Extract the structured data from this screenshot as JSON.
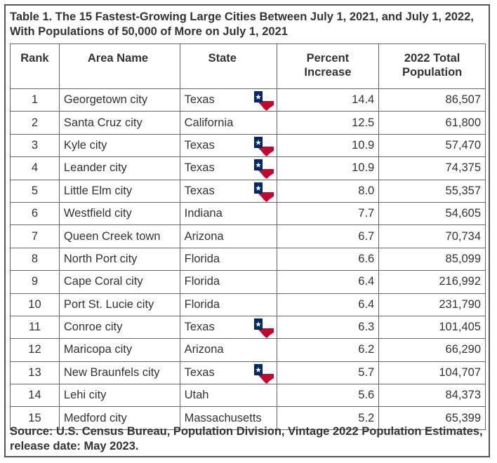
{
  "title": "Table 1. The 15 Fastest-Growing Large Cities Between July 1, 2021, and July 1, 2022, With Populations of 50,000 of More on July 1, 2021",
  "headers": {
    "rank": "Rank",
    "area": "Area Name",
    "state": "State",
    "pct_line1": "Percent",
    "pct_line2": "Increase",
    "pop_line1": "2022 Total",
    "pop_line2": "Population"
  },
  "rows": [
    {
      "rank": "1",
      "area": "Georgetown city",
      "state": "Texas",
      "pct": "14.4",
      "pop": "86,507",
      "flag": "texas-flag-icon"
    },
    {
      "rank": "2",
      "area": "Santa Cruz city",
      "state": "California",
      "pct": "12.5",
      "pop": "61,800",
      "flag": null
    },
    {
      "rank": "3",
      "area": "Kyle city",
      "state": "Texas",
      "pct": "10.9",
      "pop": "57,470",
      "flag": "texas-flag-icon"
    },
    {
      "rank": "4",
      "area": "Leander city",
      "state": "Texas",
      "pct": "10.9",
      "pop": "74,375",
      "flag": "texas-flag-icon"
    },
    {
      "rank": "5",
      "area": "Little Elm city",
      "state": "Texas",
      "pct": "8.0",
      "pop": "55,357",
      "flag": "texas-flag-icon"
    },
    {
      "rank": "6",
      "area": "Westfield city",
      "state": "Indiana",
      "pct": "7.7",
      "pop": "54,605",
      "flag": null
    },
    {
      "rank": "7",
      "area": "Queen Creek town",
      "state": "Arizona",
      "pct": "6.7",
      "pop": "70,734",
      "flag": null
    },
    {
      "rank": "8",
      "area": "North Port city",
      "state": "Florida",
      "pct": "6.6",
      "pop": "85,099",
      "flag": null
    },
    {
      "rank": "9",
      "area": "Cape Coral city",
      "state": "Florida",
      "pct": "6.4",
      "pop": "216,992",
      "flag": null
    },
    {
      "rank": "10",
      "area": "Port St. Lucie city",
      "state": "Florida",
      "pct": "6.4",
      "pop": "231,790",
      "flag": null
    },
    {
      "rank": "11",
      "area": "Conroe city",
      "state": "Texas",
      "pct": "6.3",
      "pop": "101,405",
      "flag": "texas-flag-icon"
    },
    {
      "rank": "12",
      "area": "Maricopa city",
      "state": "Arizona",
      "pct": "6.2",
      "pop": "66,290",
      "flag": null
    },
    {
      "rank": "13",
      "area": "New Braunfels city",
      "state": "Texas",
      "pct": "5.7",
      "pop": "104,707",
      "flag": "texas-flag-icon"
    },
    {
      "rank": "14",
      "area": "Lehi city",
      "state": "Utah",
      "pct": "5.6",
      "pop": "84,373",
      "flag": null
    },
    {
      "rank": "15",
      "area": "Medford city",
      "state": "Massachusetts",
      "pct": "5.2",
      "pop": "65,399",
      "flag": null
    }
  ],
  "source": "Source: U.S. Census Bureau, Population Division, Vintage 2022 Population Estimates, release date: May 2023.",
  "colors": {
    "border": "#555555",
    "text": "#333333",
    "flag_blue": "#002868",
    "flag_red": "#bf0a30",
    "flag_white": "#ffffff"
  }
}
